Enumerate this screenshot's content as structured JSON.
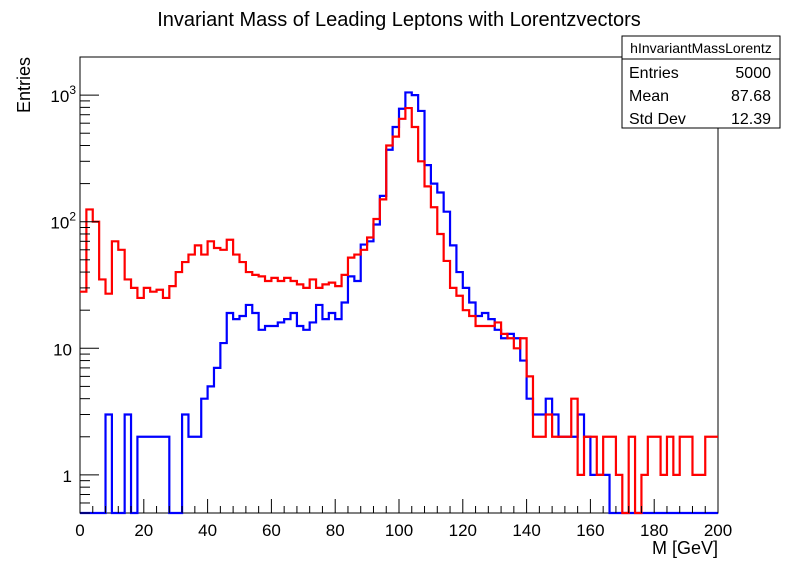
{
  "chart_data": {
    "type": "histogram",
    "title": "Invariant Mass of Leading Leptons with Lorentzvectors",
    "xlabel": "M [GeV]",
    "ylabel": "Entries",
    "xlim": [
      0,
      200
    ],
    "ylim": [
      0.5,
      2000
    ],
    "yscale": "log",
    "bin_width": 2,
    "x_ticks": [
      "0",
      "20",
      "40",
      "60",
      "80",
      "100",
      "120",
      "140",
      "160",
      "180",
      "200"
    ],
    "y_ticks": [
      {
        "value": 1,
        "base": "1",
        "exp": ""
      },
      {
        "value": 10,
        "base": "10",
        "exp": ""
      },
      {
        "value": 100,
        "base": "10",
        "exp": "2"
      },
      {
        "value": 1000,
        "base": "10",
        "exp": "3"
      }
    ],
    "stats_box": {
      "name": "hInvariantMassLorentz",
      "rows": [
        {
          "label": "Entries",
          "value": "5000"
        },
        {
          "label": "Mean",
          "value": "87.68"
        },
        {
          "label": "Std Dev",
          "value": "12.39"
        }
      ]
    },
    "series": [
      {
        "color": "#0000ff",
        "values": [
          0,
          0,
          0,
          0,
          3,
          0,
          0,
          3,
          0,
          2,
          2,
          2,
          2,
          2,
          0,
          0,
          3,
          2,
          2,
          4,
          5,
          7,
          11,
          19,
          17,
          18,
          22,
          19,
          14,
          15,
          15,
          16,
          17,
          19,
          15,
          14,
          16,
          22,
          17,
          19,
          17,
          23,
          37,
          34,
          66,
          70,
          95,
          160,
          370,
          560,
          780,
          1050,
          1000,
          750,
          280,
          200,
          170,
          120,
          65,
          40,
          30,
          23,
          18,
          19,
          17,
          14,
          12,
          13,
          12,
          8,
          4,
          3,
          3,
          4,
          3,
          2,
          2,
          2,
          3,
          2,
          1,
          1,
          1,
          0,
          0,
          0,
          0,
          0,
          0,
          0,
          0,
          0,
          0,
          0,
          0,
          0,
          0,
          0,
          0,
          0
        ]
      },
      {
        "color": "#ff0000",
        "values": [
          28,
          125,
          100,
          35,
          27,
          70,
          60,
          35,
          30,
          25,
          30,
          28,
          29,
          25,
          31,
          40,
          48,
          55,
          65,
          55,
          70,
          62,
          60,
          72,
          55,
          48,
          40,
          38,
          37,
          34,
          36,
          34,
          36,
          34,
          32,
          30,
          35,
          30,
          32,
          33,
          31,
          38,
          52,
          55,
          60,
          75,
          105,
          150,
          400,
          470,
          650,
          790,
          560,
          300,
          190,
          130,
          80,
          49,
          30,
          26,
          20,
          18,
          15,
          15,
          15,
          16,
          13,
          12,
          10,
          12,
          6,
          2,
          2,
          3,
          2,
          2,
          2,
          4,
          1,
          2,
          2,
          1,
          2,
          2,
          1,
          0,
          2,
          0,
          1,
          2,
          2,
          1,
          2,
          1,
          2,
          2,
          1,
          1,
          2,
          2
        ]
      }
    ]
  }
}
